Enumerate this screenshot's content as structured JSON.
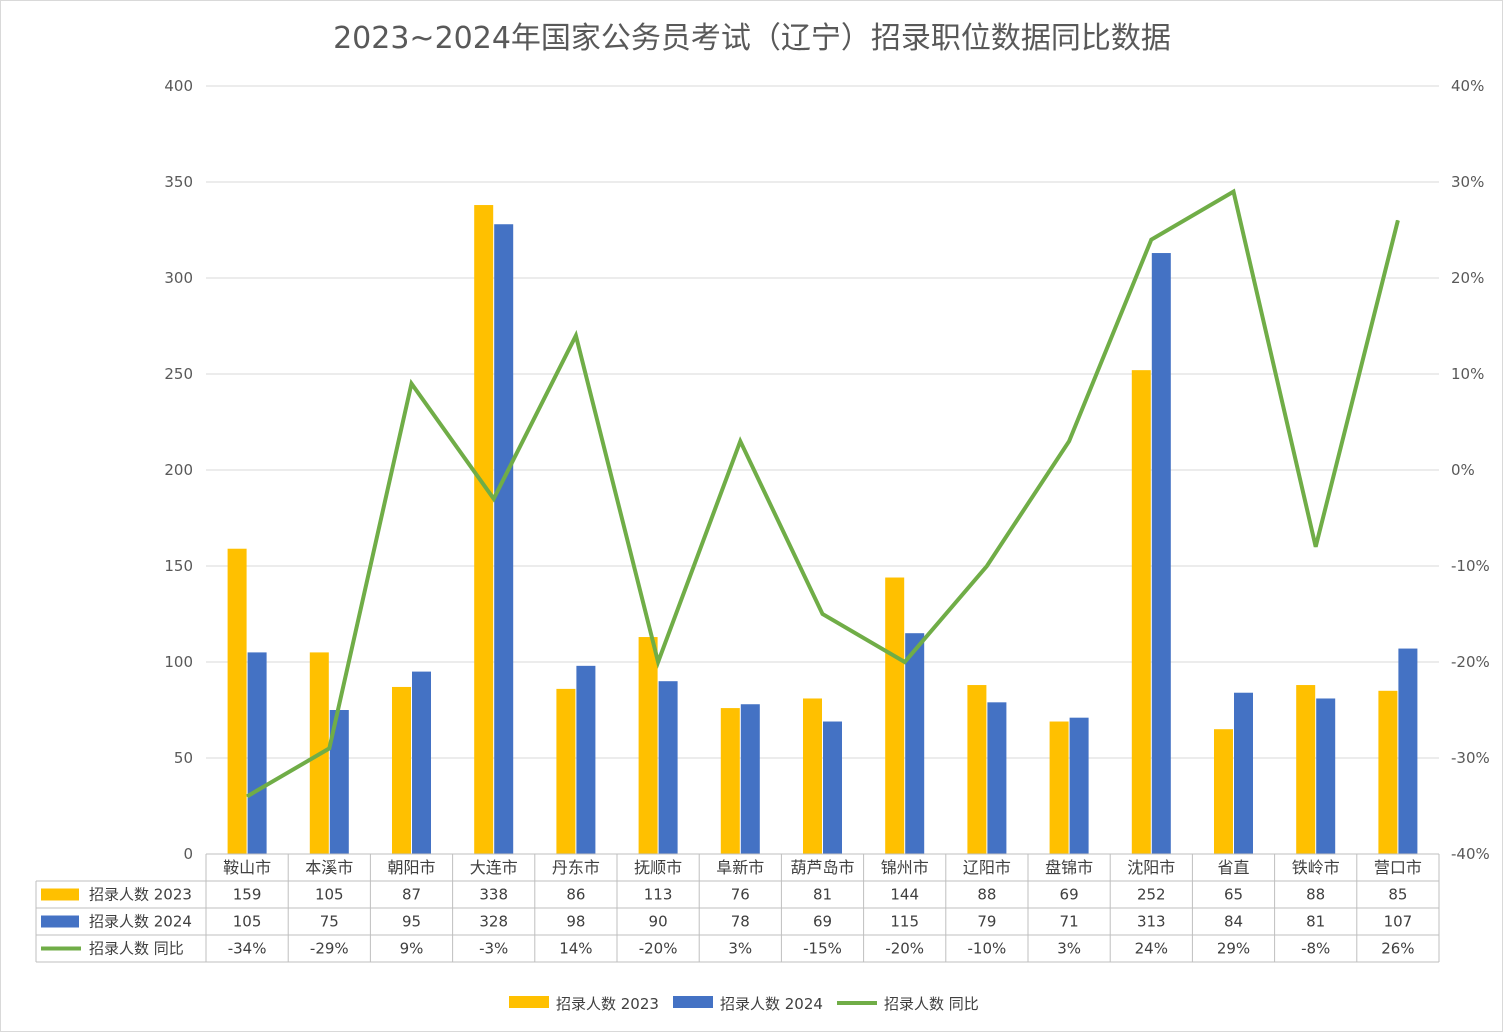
{
  "chart_data": {
    "type": "bar",
    "title": "2023~2024年国家公务员考试（辽宁）招录职位数据同比数据",
    "categories": [
      "鞍山市",
      "本溪市",
      "朝阳市",
      "大连市",
      "丹东市",
      "抚顺市",
      "阜新市",
      "葫芦岛市",
      "锦州市",
      "辽阳市",
      "盘锦市",
      "沈阳市",
      "省直",
      "铁岭市",
      "营口市"
    ],
    "series": [
      {
        "name": "招录人数 2023",
        "type": "bar",
        "axis": "left",
        "color": "#FFC000",
        "values": [
          159,
          105,
          87,
          338,
          86,
          113,
          76,
          81,
          144,
          88,
          69,
          252,
          65,
          88,
          85
        ]
      },
      {
        "name": "招录人数 2024",
        "type": "bar",
        "axis": "left",
        "color": "#4472C4",
        "values": [
          105,
          75,
          95,
          328,
          98,
          90,
          78,
          69,
          115,
          79,
          71,
          313,
          84,
          81,
          107
        ]
      },
      {
        "name": "招录人数 同比",
        "type": "line",
        "axis": "right",
        "color": "#70AD47",
        "values": [
          -34,
          -29,
          9,
          -3,
          14,
          -20,
          3,
          -15,
          -20,
          -10,
          3,
          24,
          29,
          -8,
          26
        ],
        "labels": [
          "-34%",
          "-29%",
          "9%",
          "-3%",
          "14%",
          "-20%",
          "3%",
          "-15%",
          "-20%",
          "-10%",
          "3%",
          "24%",
          "29%",
          "-8%",
          "26%"
        ]
      }
    ],
    "ylim_left": [
      0,
      400
    ],
    "yticks_left": [
      "0",
      "50",
      "100",
      "150",
      "200",
      "250",
      "300",
      "350",
      "400"
    ],
    "ylim_right": [
      -40,
      40
    ],
    "yticks_right": [
      "-40%",
      "-30%",
      "-20%",
      "-10%",
      "0%",
      "10%",
      "20%",
      "30%",
      "40%"
    ],
    "grid": true,
    "legend": "bottom",
    "data_table": true
  }
}
